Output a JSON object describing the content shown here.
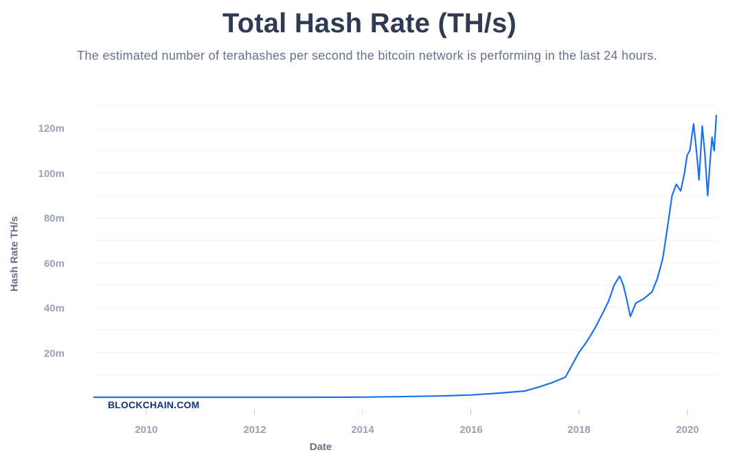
{
  "header": {
    "title": "Total Hash Rate (TH/s)",
    "subtitle": "The estimated number of terahashes per second the bitcoin network is performing in the last 24 hours."
  },
  "watermark": "BLOCKCHAIN.COM",
  "colors": {
    "line": "#1a6ff0",
    "title": "#2f3b52",
    "axis_text": "#98a1b5",
    "label_text": "#66708a",
    "grid": "#eef0f4",
    "watermark": "#123474"
  },
  "chart_data": {
    "type": "line",
    "title": "Total Hash Rate (TH/s)",
    "subtitle": "The estimated number of terahashes per second the bitcoin network is performing in the last 24 hours.",
    "xlabel": "Date",
    "ylabel": "Hash Rate TH/s",
    "x_ticks": [
      "2010",
      "2012",
      "2014",
      "2016",
      "2018",
      "2020"
    ],
    "y_ticks": [
      "20m",
      "40m",
      "60m",
      "80m",
      "100m",
      "120m"
    ],
    "ylim": [
      0,
      130000000
    ],
    "xlim": [
      2009.0,
      2020.55
    ],
    "grid": true,
    "legend": "none",
    "series": [
      {
        "name": "Hash Rate TH/s",
        "x": [
          2009.0,
          2010.0,
          2011.0,
          2012.0,
          2013.0,
          2014.0,
          2014.5,
          2015.0,
          2015.5,
          2016.0,
          2016.5,
          2017.0,
          2017.25,
          2017.5,
          2017.75,
          2018.0,
          2018.15,
          2018.3,
          2018.45,
          2018.55,
          2018.65,
          2018.75,
          2018.82,
          2018.88,
          2018.95,
          2019.05,
          2019.2,
          2019.35,
          2019.45,
          2019.55,
          2019.65,
          2019.72,
          2019.8,
          2019.88,
          2019.95,
          2020.0,
          2020.05,
          2020.12,
          2020.18,
          2020.22,
          2020.28,
          2020.33,
          2020.38,
          2020.42,
          2020.46,
          2020.5,
          2020.55
        ],
        "values": [
          0,
          0,
          0,
          0,
          0,
          0.05,
          0.2,
          0.4,
          0.6,
          1.0,
          1.8,
          2.8,
          4.5,
          6.5,
          9.0,
          20.0,
          25.0,
          31.0,
          38.0,
          43.0,
          50.0,
          54.0,
          50.0,
          44.0,
          36.0,
          42.0,
          44.0,
          47.0,
          53.0,
          62.0,
          78.0,
          90.0,
          95.0,
          92.0,
          100.0,
          108.0,
          110.0,
          122.0,
          108.0,
          97.0,
          121.0,
          108.0,
          90.0,
          104.0,
          116.0,
          110.0,
          126.0
        ],
        "value_unit": "million TH/s"
      }
    ]
  }
}
